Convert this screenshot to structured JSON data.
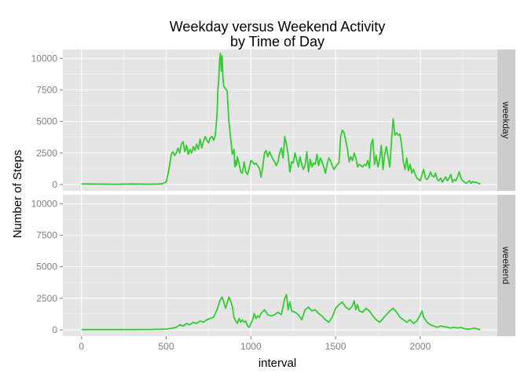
{
  "chart_data": {
    "type": "line",
    "title": "Weekday versus Weekend Activity\nby Time of Day",
    "xlabel": "interval",
    "ylabel": "Number of Steps",
    "xlim": [
      -110,
      2455
    ],
    "ylim": [
      -500,
      10700
    ],
    "x_ticks": [
      0,
      500,
      1000,
      1500,
      2000
    ],
    "y_ticks": [
      0,
      2500,
      5000,
      7500,
      10000
    ],
    "grid": true,
    "line_color": "#33cc33",
    "panel_background": "#e5e5e5",
    "strip_background": "#cccccc",
    "panels": [
      {
        "strip": "weekday",
        "x": [
          0,
          100,
          200,
          300,
          400,
          450,
          480,
          500,
          510,
          520,
          530,
          540,
          550,
          560,
          570,
          580,
          590,
          600,
          610,
          620,
          630,
          640,
          650,
          660,
          670,
          680,
          690,
          700,
          710,
          720,
          730,
          740,
          750,
          760,
          770,
          780,
          790,
          800,
          805,
          810,
          815,
          820,
          825,
          830,
          835,
          840,
          845,
          850,
          855,
          860,
          870,
          880,
          890,
          900,
          905,
          910,
          915,
          920,
          930,
          940,
          950,
          960,
          970,
          980,
          990,
          1000,
          1010,
          1020,
          1030,
          1040,
          1050,
          1060,
          1070,
          1080,
          1090,
          1100,
          1110,
          1120,
          1130,
          1140,
          1150,
          1160,
          1170,
          1180,
          1190,
          1200,
          1210,
          1220,
          1230,
          1240,
          1250,
          1260,
          1270,
          1280,
          1290,
          1300,
          1310,
          1320,
          1330,
          1340,
          1350,
          1360,
          1370,
          1380,
          1390,
          1400,
          1410,
          1420,
          1430,
          1440,
          1450,
          1460,
          1470,
          1480,
          1490,
          1500,
          1510,
          1520,
          1530,
          1540,
          1550,
          1560,
          1570,
          1580,
          1590,
          1600,
          1610,
          1620,
          1630,
          1640,
          1650,
          1660,
          1670,
          1680,
          1690,
          1700,
          1710,
          1720,
          1730,
          1740,
          1750,
          1760,
          1770,
          1780,
          1790,
          1800,
          1810,
          1820,
          1830,
          1840,
          1850,
          1860,
          1870,
          1880,
          1890,
          1900,
          1910,
          1920,
          1930,
          1940,
          1950,
          1960,
          1970,
          1980,
          1990,
          2000,
          2010,
          2020,
          2030,
          2040,
          2050,
          2060,
          2070,
          2080,
          2090,
          2100,
          2110,
          2120,
          2130,
          2140,
          2150,
          2160,
          2170,
          2180,
          2190,
          2200,
          2210,
          2220,
          2230,
          2240,
          2250,
          2260,
          2270,
          2280,
          2290,
          2300,
          2310,
          2320,
          2330,
          2340,
          2355
        ],
        "values": [
          50,
          40,
          20,
          50,
          30,
          40,
          80,
          200,
          800,
          1500,
          2400,
          2600,
          2300,
          2500,
          2900,
          2500,
          3200,
          3400,
          2600,
          3100,
          2400,
          2800,
          2500,
          3000,
          2700,
          3200,
          2800,
          3600,
          2900,
          3400,
          3800,
          3500,
          3300,
          3700,
          3800,
          3500,
          3900,
          5500,
          7500,
          8200,
          9800,
          10400,
          9000,
          10200,
          8500,
          7800,
          7700,
          7600,
          7500,
          7400,
          5000,
          3800,
          2400,
          2800,
          1400,
          1900,
          1500,
          2200,
          1700,
          1000,
          900,
          1800,
          1000,
          800,
          1300,
          1900,
          1800,
          1600,
          1700,
          1500,
          1300,
          600,
          1400,
          2500,
          2700,
          2200,
          2600,
          2300,
          2000,
          1800,
          1500,
          1800,
          2500,
          2900,
          2100,
          3800,
          3200,
          2400,
          1000,
          1800,
          1700,
          2500,
          2000,
          1400,
          2200,
          1600,
          1200,
          1500,
          2600,
          1000,
          2000,
          1400,
          1700,
          1600,
          2400,
          1500,
          2100,
          1800,
          1400,
          900,
          1600,
          2100,
          1900,
          1500,
          1200,
          1400,
          1600,
          1700,
          3800,
          4300,
          4100,
          3500,
          2800,
          1800,
          2200,
          1900,
          2500,
          2100,
          1400,
          1600,
          1500,
          1400,
          1600,
          1500,
          1900,
          1300,
          3200,
          3600,
          1600,
          2300,
          1400,
          2000,
          3100,
          1200,
          2400,
          3000,
          2200,
          1400,
          3500,
          5200,
          3900,
          4100,
          3900,
          4000,
          3100,
          1800,
          1200,
          2100,
          1100,
          1600,
          900,
          1200,
          800,
          500,
          400,
          300,
          800,
          1200,
          500,
          400,
          600,
          1000,
          700,
          600,
          900,
          400,
          300,
          500,
          200,
          400,
          600,
          300,
          500,
          800,
          200,
          400,
          300,
          600,
          1000,
          500,
          300,
          200,
          100,
          200,
          300,
          100,
          250,
          150,
          200,
          100,
          50
        ]
      },
      {
        "strip": "weekend",
        "x": [
          0,
          100,
          200,
          300,
          400,
          500,
          520,
          540,
          560,
          580,
          600,
          620,
          640,
          660,
          680,
          700,
          720,
          740,
          760,
          780,
          800,
          810,
          820,
          830,
          840,
          850,
          860,
          870,
          880,
          890,
          900,
          910,
          920,
          930,
          940,
          950,
          960,
          970,
          980,
          990,
          1000,
          1010,
          1020,
          1030,
          1040,
          1050,
          1060,
          1080,
          1100,
          1120,
          1140,
          1160,
          1180,
          1200,
          1210,
          1220,
          1230,
          1240,
          1260,
          1280,
          1300,
          1320,
          1340,
          1360,
          1380,
          1400,
          1420,
          1440,
          1460,
          1480,
          1500,
          1520,
          1540,
          1560,
          1580,
          1600,
          1610,
          1620,
          1630,
          1640,
          1660,
          1680,
          1700,
          1720,
          1740,
          1760,
          1780,
          1800,
          1820,
          1840,
          1860,
          1880,
          1900,
          1920,
          1940,
          1960,
          1980,
          2000,
          2010,
          2020,
          2040,
          2060,
          2080,
          2100,
          2120,
          2140,
          2160,
          2180,
          2200,
          2220,
          2240,
          2260,
          2280,
          2300,
          2320,
          2340,
          2355
        ],
        "values": [
          20,
          20,
          20,
          20,
          30,
          60,
          100,
          150,
          200,
          400,
          300,
          500,
          400,
          600,
          500,
          700,
          600,
          800,
          900,
          1000,
          1600,
          2000,
          2400,
          2600,
          2200,
          1700,
          2100,
          2600,
          2300,
          1900,
          1000,
          700,
          500,
          900,
          600,
          800,
          600,
          700,
          300,
          200,
          500,
          800,
          1300,
          900,
          1100,
          1000,
          1300,
          1600,
          1200,
          1100,
          1200,
          1400,
          1200,
          2500,
          2800,
          1600,
          2200,
          1500,
          1400,
          1200,
          800,
          1600,
          1800,
          1500,
          1600,
          1300,
          1100,
          800,
          600,
          1000,
          1700,
          2000,
          2200,
          1800,
          1600,
          1900,
          2300,
          1600,
          2000,
          1500,
          1400,
          1700,
          1500,
          1100,
          800,
          600,
          900,
          1200,
          1500,
          1700,
          1400,
          1000,
          800,
          600,
          800,
          500,
          700,
          1200,
          1500,
          1000,
          600,
          400,
          300,
          200,
          300,
          250,
          200,
          150,
          200,
          150,
          200,
          100,
          50,
          80,
          150,
          50,
          20
        ]
      }
    ]
  }
}
